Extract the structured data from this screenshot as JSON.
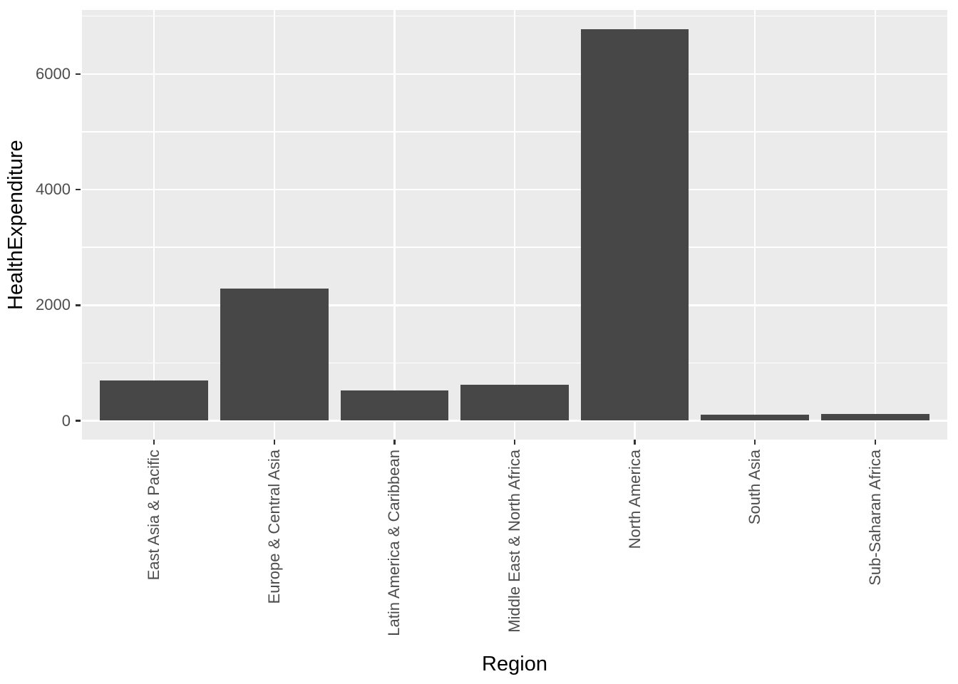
{
  "chart_data": {
    "type": "bar",
    "title": "",
    "xlabel": "Region",
    "ylabel": "HealthExpenditure",
    "categories": [
      "East Asia & Pacific",
      "Europe & Central Asia",
      "Latin America & Caribbean",
      "Middle East & North Africa",
      "North America",
      "South Asia",
      "Sub-Saharan Africa"
    ],
    "values": [
      697,
      2285,
      524,
      622,
      6775,
      110,
      120
    ],
    "ylim": [
      -330,
      7110
    ],
    "y_major_ticks": [
      0,
      2000,
      4000,
      6000
    ],
    "y_tick_labels": [
      "0",
      "2000",
      "4000",
      "6000"
    ],
    "y_minor_gridlines": [
      1000,
      3000,
      5000,
      7000
    ],
    "bar_width_fraction": 0.9,
    "grid": "white major+minor horizontal; white vertical at category centers",
    "legend_position": "none",
    "colors": {
      "bar_fill": "#474747",
      "panel_background": "#EBEBEB",
      "gridline": "#FFFFFF",
      "axis_text": "#4D4D4D",
      "axis_title": "#000000",
      "tick_mark": "#333333",
      "page_background": "#FFFFFF"
    }
  }
}
